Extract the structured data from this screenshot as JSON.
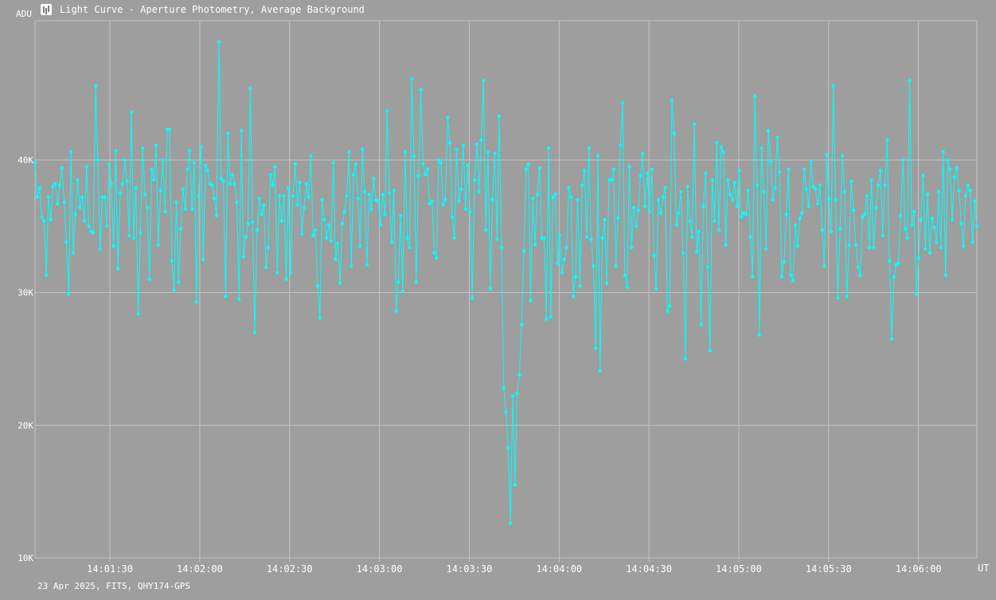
{
  "window": {
    "title": "Light Curve - Aperture Photometry, Average Background",
    "footer": "23 Apr 2025, FITS, QHY174-GPS"
  },
  "colors": {
    "background": "#9e9e9e",
    "grid": "#c4c4c4",
    "series": "#00ffff",
    "text": "#ffffff"
  },
  "chart_data": {
    "type": "line",
    "xlabel": "UT",
    "ylabel": "ADU",
    "x_tick_labels": [
      "14:01:30",
      "14:02:00",
      "14:02:30",
      "14:03:00",
      "14:03:30",
      "14:04:00",
      "14:04:30",
      "14:05:00",
      "14:05:30",
      "14:06:00"
    ],
    "y_tick_labels": [
      "10K",
      "20K",
      "30K",
      "40K"
    ],
    "y_ticks": [
      10000,
      20000,
      30000,
      40000
    ],
    "ylim": [
      10000,
      50500
    ],
    "x_time_range": [
      "14:01:05",
      "14:06:19.5"
    ],
    "grid": true,
    "legend": "none",
    "markers": true,
    "series": [
      {
        "values": [
          39800,
          37200,
          37900,
          35700,
          35400,
          31300,
          37200,
          35500,
          38000,
          38200,
          36700,
          38100,
          39400,
          36800,
          33800,
          29900,
          40600,
          33000,
          35900,
          38500,
          36400,
          37200,
          35400,
          39500,
          35000,
          34600,
          34500,
          45600,
          40000,
          33300,
          37200,
          37200,
          35000,
          39700,
          38200,
          33500,
          40700,
          31800,
          37500,
          38200,
          40000,
          38400,
          34300,
          43600,
          34100,
          37900,
          28400,
          34500,
          40900,
          37400,
          36400,
          31000,
          39300,
          38500,
          41100,
          33600,
          37700,
          40000,
          36100,
          42300,
          42300,
          32400,
          30200,
          36800,
          30800,
          34800,
          37800,
          36300,
          39300,
          40700,
          36300,
          39800,
          29300,
          37300,
          41000,
          32500,
          39600,
          39200,
          38200,
          38100,
          37100,
          35800,
          48900,
          38600,
          38400,
          29700,
          42000,
          38200,
          38900,
          38200,
          36800,
          29500,
          42200,
          32700,
          34200,
          35200,
          45400,
          35300,
          27000,
          34700,
          37100,
          35900,
          36600,
          31900,
          33400,
          38900,
          38100,
          39500,
          31500,
          37300,
          35400,
          37300,
          31000,
          37900,
          31500,
          37300,
          39700,
          36600,
          38300,
          34400,
          36400,
          38200,
          37200,
          40300,
          34300,
          34700,
          30500,
          28100,
          37000,
          35500,
          34100,
          35100,
          33900,
          39800,
          32500,
          33700,
          30700,
          35200,
          36100,
          37300,
          40600,
          32000,
          38900,
          39700,
          37100,
          33500,
          40800,
          37600,
          32100,
          37400,
          36300,
          38600,
          37000,
          36900,
          35100,
          37400,
          35900,
          43700,
          37500,
          33800,
          37700,
          28600,
          30800,
          35800,
          30100,
          40600,
          34100,
          33400,
          46100,
          40300,
          30800,
          38800,
          45300,
          39700,
          38900,
          39300,
          36700,
          36900,
          33000,
          32600,
          40000,
          39800,
          36600,
          37000,
          43200,
          41300,
          35700,
          34100,
          40800,
          36900,
          37800,
          41100,
          36300,
          39600,
          36100,
          29600,
          38500,
          41200,
          37600,
          41500,
          46000,
          34700,
          40600,
          30300,
          37000,
          40500,
          34000,
          43300,
          33400,
          22800,
          21000,
          18300,
          12600,
          22200,
          15500,
          22400,
          23800,
          27600,
          33100,
          39300,
          39700,
          29400,
          37100,
          33600,
          37400,
          39400,
          34100,
          34100,
          28000,
          40900,
          28200,
          37200,
          37400,
          32200,
          34300,
          31500,
          32500,
          33400,
          37900,
          37200,
          29700,
          31200,
          37000,
          30500,
          38100,
          39200,
          34200,
          40900,
          34000,
          32000,
          25800,
          40300,
          24100,
          34100,
          35500,
          30700,
          38500,
          38500,
          39300,
          32000,
          35600,
          41100,
          44300,
          31300,
          30400,
          39500,
          33400,
          36400,
          35000,
          36200,
          38800,
          40500,
          36500,
          39000,
          36100,
          39300,
          32800,
          30300,
          37000,
          36000,
          37200,
          37900,
          28600,
          29000,
          44500,
          42000,
          35100,
          36000,
          37600,
          33000,
          25000,
          38000,
          35400,
          34200,
          42700,
          33100,
          34600,
          27600,
          36500,
          39000,
          31900,
          25600,
          38500,
          35400,
          41300,
          34700,
          41000,
          40600,
          33600,
          38500,
          37400,
          37000,
          38300,
          36500,
          39200,
          35700,
          36000,
          35900,
          37700,
          34200,
          31200,
          44800,
          38100,
          26800,
          40900,
          37600,
          33300,
          42200,
          39900,
          37000,
          37900,
          41700,
          39100,
          31200,
          32300,
          35900,
          39300,
          31300,
          30900,
          35100,
          33500,
          35600,
          36000,
          39300,
          37800,
          36500,
          39900,
          38000,
          37800,
          36700,
          38100,
          34700,
          32000,
          40400,
          37100,
          34600,
          45600,
          37000,
          29600,
          34800,
          40300,
          37600,
          29700,
          33600,
          38400,
          36200,
          33600,
          31900,
          31300,
          35700,
          35900,
          37300,
          33400,
          38500,
          33400,
          36400,
          38100,
          39200,
          34300,
          38100,
          41500,
          32400,
          26500,
          31200,
          32100,
          32200,
          35800,
          40000,
          34800,
          34100,
          46000,
          35100,
          36100,
          29900,
          32600,
          35500,
          38800,
          33300,
          37400,
          33000,
          35600,
          34900,
          33800,
          37600,
          33400,
          40600,
          31300,
          40000,
          39300,
          35500,
          38700,
          39400,
          37700,
          35200,
          33500,
          37300,
          38100,
          37700,
          33800,
          36900,
          35000
        ]
      }
    ]
  }
}
